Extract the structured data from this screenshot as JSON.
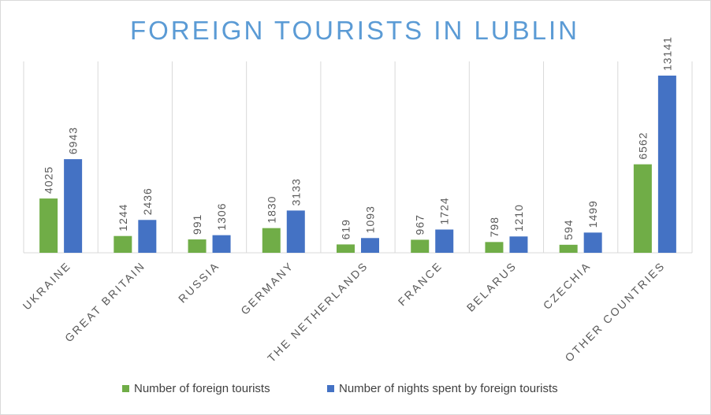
{
  "chart_data": {
    "type": "bar",
    "title": "FOREIGN TOURISTS IN LUBLIN",
    "categories": [
      "UKRAINE",
      "GREAT BRITAIN",
      "RUSSIA",
      "GERMANY",
      "THE NETHERLANDS",
      "FRANCE",
      "BELARUS",
      "CZECHIA",
      "OTHER COUNTRIES"
    ],
    "series": [
      {
        "name": "Number of foreign tourists",
        "color": "#70ad47",
        "values": [
          4025,
          1244,
          991,
          1830,
          619,
          967,
          798,
          594,
          6562
        ]
      },
      {
        "name": "Number of nights spent by foreign tourists",
        "color": "#4472c4",
        "values": [
          6943,
          2436,
          1306,
          3133,
          1093,
          1724,
          1210,
          1499,
          13141
        ]
      }
    ],
    "xlabel": "",
    "ylabel": "",
    "ylim": [
      0,
      14000
    ],
    "grid": "vertical category separators",
    "legend": "bottom"
  }
}
